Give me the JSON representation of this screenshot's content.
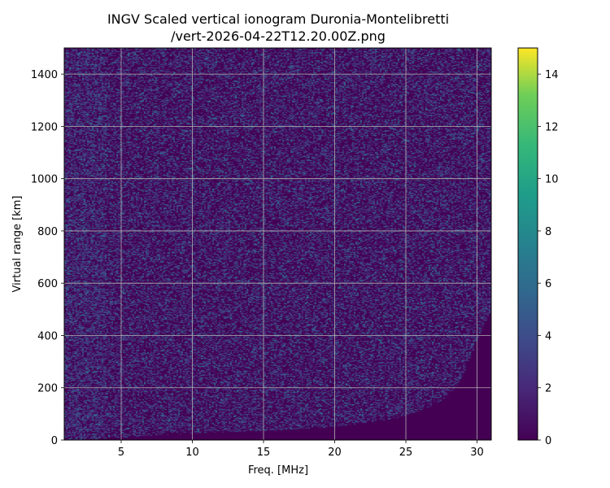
{
  "chart_data": {
    "type": "heatmap",
    "title_line1": "INGV Scaled vertical ionogram Duronia-Montelibretti",
    "title_line2": "/vert-2026-04-22T12.20.00Z.png",
    "xlabel": "Freq. [MHz]",
    "ylabel": "Virtual range [km]",
    "xlim": [
      1,
      31
    ],
    "ylim": [
      0,
      1500
    ],
    "x_ticks": [
      5,
      10,
      15,
      20,
      25,
      30
    ],
    "y_ticks": [
      0,
      200,
      400,
      600,
      800,
      1000,
      1200,
      1400
    ],
    "grid": true,
    "colorbar": {
      "colormap": "viridis",
      "range": [
        0,
        15
      ],
      "ticks": [
        0,
        2,
        4,
        6,
        8,
        10,
        12,
        14
      ]
    },
    "background_level": 0,
    "noise_levels_typical": [
      0,
      1,
      2,
      3
    ],
    "clear_region_boundary": {
      "freq_mhz": [
        2,
        10,
        15,
        20,
        24,
        26,
        27.5,
        28.5,
        29.3,
        30,
        31
      ],
      "range_km": [
        0,
        25,
        35,
        50,
        80,
        110,
        150,
        200,
        280,
        380,
        500
      ]
    }
  }
}
